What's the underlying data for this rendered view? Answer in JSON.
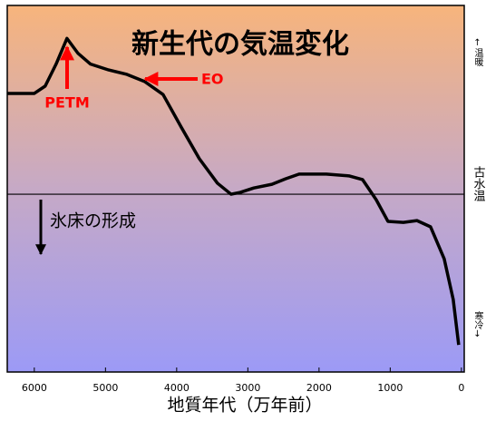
{
  "chart_data": {
    "type": "line",
    "title": "新生代の気温変化",
    "x_label": "地質年代（万年前）",
    "annotations": {
      "petm": "PETM",
      "eo": "EO",
      "ice": "氷床の形成",
      "warm": "↑温暖",
      "paleo": "古水温",
      "cold": "寒冷↓"
    },
    "xlim": [
      6380,
      -40
    ],
    "ylim": [
      0,
      100
    ],
    "xticks": [
      6000,
      5000,
      4000,
      3000,
      2000,
      1000,
      0
    ],
    "reference_line": 48.5,
    "series": [
      {
        "color": "#000000",
        "x": [
          6380,
          6000,
          5847,
          5694,
          5541,
          5389,
          5210,
          4955,
          4700,
          4446,
          4191,
          3936,
          3682,
          3427,
          3236,
          3108,
          2917,
          2662,
          2471,
          2280,
          1898,
          1580,
          1389,
          1197,
          1032,
          815,
          624,
          433,
          242,
          115,
          38
        ],
        "values": [
          76,
          76,
          78,
          84,
          91,
          87,
          84,
          82.4,
          81.2,
          79.2,
          75.7,
          66.8,
          58.2,
          51.5,
          48.5,
          49,
          50.2,
          51.2,
          52.7,
          54,
          54,
          53.5,
          52.5,
          47,
          41.1,
          40.8,
          41.3,
          39.6,
          30.9,
          19.8,
          7.4
        ]
      }
    ]
  }
}
